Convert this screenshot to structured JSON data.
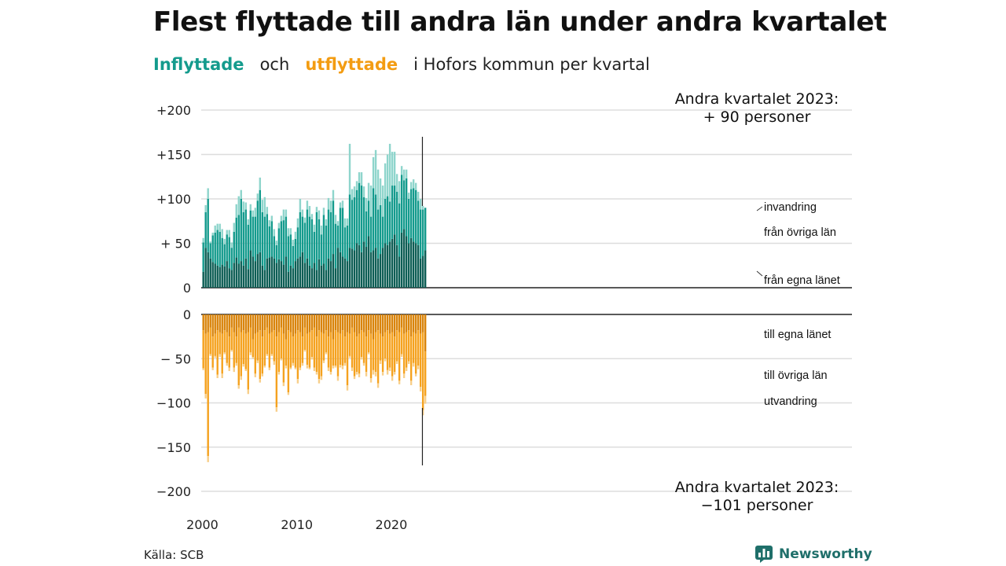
{
  "title": "Flest flyttade till andra län under andra kvartalet",
  "subtitle": {
    "in_word": "Inflyttade",
    "and_word": "och",
    "out_word": "utflyttade",
    "rest": "i Hofors kommun per kvartal"
  },
  "source": "Källa: SCB",
  "logo": {
    "text": "Newsworthy",
    "icon": "newsworthy-bar-chart-icon"
  },
  "colors": {
    "in_own": "#0e5e55",
    "in_other": "#149b8d",
    "in_imm": "#8fd5cc",
    "out_own": "#d9840b",
    "out_other": "#f5a21f",
    "out_emi": "#f8cf8a",
    "grid": "#dddddd",
    "axis": "#222222"
  },
  "chart_data": {
    "type": "bar",
    "stacked": true,
    "x_start": {
      "year": 2000,
      "quarter": 1
    },
    "x_ticks": [
      "2000",
      "2010",
      "2020"
    ],
    "y_ticks_top": [
      {
        "value": 200,
        "label": "+200"
      },
      {
        "value": 150,
        "label": "+150"
      },
      {
        "value": 100,
        "label": "+100"
      },
      {
        "value": 50,
        "label": "+ 50"
      },
      {
        "value": 0,
        "label": "0"
      }
    ],
    "y_ticks_bottom": [
      {
        "value": 0,
        "label": "0"
      },
      {
        "value": -50,
        "label": "− 50"
      },
      {
        "value": -100,
        "label": "−100"
      },
      {
        "value": -150,
        "label": "−150"
      },
      {
        "value": -200,
        "label": "−200"
      }
    ],
    "ylim_top": [
      0,
      200
    ],
    "ylim_bottom": [
      -200,
      0
    ],
    "series_labels": {
      "in_imm": "invandring",
      "in_other": "från övriga län",
      "in_own": "från egna länet",
      "out_own": "till egna länet",
      "out_other": "till övriga län",
      "out_emi": "utvandring"
    },
    "annotation_top": {
      "line1": "Andra kvartalet 2023:",
      "line2": "+ 90 personer"
    },
    "annotation_bottom": {
      "line1": "Andra kvartalet 2023:",
      "line2": "−101 personer"
    },
    "inflows": {
      "from_own_county": [
        18,
        45,
        40,
        33,
        29,
        27,
        25,
        23,
        26,
        24,
        30,
        22,
        20,
        28,
        34,
        27,
        30,
        25,
        33,
        21,
        42,
        35,
        30,
        38,
        40,
        25,
        20,
        33,
        34,
        35,
        33,
        28,
        32,
        30,
        26,
        35,
        18,
        25,
        22,
        30,
        33,
        35,
        40,
        28,
        33,
        25,
        22,
        28,
        20,
        32,
        25,
        27,
        20,
        33,
        30,
        38,
        22,
        45,
        40,
        35,
        33,
        30,
        45,
        44,
        42,
        50,
        48,
        40,
        52,
        46,
        58,
        40,
        42,
        45,
        33,
        38,
        45,
        50,
        48,
        52,
        55,
        60,
        48,
        35,
        62,
        66,
        58,
        50,
        56,
        52,
        50,
        48,
        33,
        36,
        42
      ],
      "from_other_counties": [
        33,
        40,
        60,
        17,
        30,
        35,
        40,
        40,
        30,
        25,
        30,
        35,
        25,
        35,
        45,
        55,
        70,
        60,
        55,
        50,
        45,
        45,
        50,
        60,
        70,
        60,
        60,
        50,
        35,
        40,
        25,
        20,
        35,
        45,
        50,
        45,
        40,
        35,
        25,
        25,
        35,
        50,
        40,
        45,
        55,
        55,
        55,
        35,
        65,
        45,
        35,
        55,
        50,
        55,
        55,
        60,
        50,
        25,
        50,
        55,
        35,
        40,
        60,
        55,
        60,
        60,
        70,
        75,
        50,
        40,
        40,
        40,
        70,
        60,
        55,
        55,
        35,
        50,
        55,
        45,
        60,
        55,
        60,
        60,
        65,
        55,
        65,
        50,
        55,
        60,
        60,
        50,
        55,
        52,
        48
      ],
      "immigration": [
        5,
        8,
        12,
        2,
        3,
        8,
        7,
        9,
        10,
        6,
        5,
        8,
        6,
        10,
        15,
        21,
        10,
        12,
        8,
        6,
        7,
        7,
        10,
        8,
        14,
        14,
        22,
        8,
        7,
        6,
        8,
        5,
        6,
        6,
        12,
        8,
        9,
        7,
        7,
        8,
        10,
        15,
        8,
        6,
        10,
        12,
        6,
        8,
        6,
        10,
        10,
        8,
        7,
        13,
        13,
        12,
        10,
        5,
        6,
        8,
        10,
        8,
        57,
        12,
        12,
        10,
        12,
        15,
        12,
        15,
        20,
        35,
        35,
        50,
        45,
        30,
        35,
        40,
        47,
        65,
        38,
        38,
        20,
        25,
        10,
        12,
        10,
        7,
        8,
        10,
        8,
        10,
        12,
        4,
        0
      ]
    },
    "outflows": {
      "to_own_county": [
        18,
        22,
        20,
        15,
        25,
        22,
        18,
        20,
        22,
        18,
        20,
        25,
        15,
        20,
        25,
        15,
        20,
        18,
        22,
        20,
        15,
        28,
        22,
        20,
        18,
        25,
        18,
        15,
        22,
        20,
        18,
        25,
        20,
        15,
        22,
        28,
        18,
        20,
        25,
        22,
        18,
        20,
        25,
        15,
        22,
        20,
        18,
        15,
        25,
        18,
        20,
        22,
        18,
        25,
        20,
        28,
        18,
        20,
        22,
        18,
        25,
        20,
        22,
        15,
        20,
        25,
        22,
        18,
        20,
        25,
        18,
        22,
        28,
        20,
        18,
        22,
        25,
        20,
        18,
        22,
        20,
        25,
        18,
        20,
        15,
        22,
        20,
        18,
        25,
        20,
        22,
        18,
        22,
        20,
        42
      ],
      "to_other_counties": [
        43,
        68,
        140,
        30,
        35,
        25,
        50,
        25,
        45,
        25,
        35,
        35,
        25,
        40,
        30,
        65,
        50,
        38,
        40,
        65,
        28,
        20,
        45,
        32,
        55,
        42,
        40,
        30,
        38,
        25,
        35,
        80,
        45,
        35,
        55,
        30,
        70,
        40,
        30,
        38,
        55,
        40,
        30,
        25,
        35,
        40,
        30,
        45,
        40,
        55,
        50,
        30,
        25,
        35,
        45,
        30,
        40,
        50,
        35,
        40,
        30,
        60,
        25,
        45,
        50,
        40,
        45,
        30,
        35,
        40,
        25,
        50,
        35,
        45,
        60,
        30,
        40,
        30,
        45,
        38,
        50,
        40,
        35,
        55,
        30,
        45,
        40,
        35,
        50,
        35,
        45,
        40,
        60,
        88,
        50
      ],
      "emigration": [
        2,
        5,
        7,
        2,
        3,
        2,
        4,
        3,
        5,
        2,
        3,
        4,
        2,
        5,
        3,
        4,
        4,
        3,
        2,
        5,
        3,
        2,
        4,
        3,
        4,
        3,
        2,
        2,
        3,
        2,
        4,
        5,
        3,
        2,
        4,
        3,
        3,
        2,
        3,
        2,
        5,
        3,
        3,
        2,
        4,
        2,
        3,
        4,
        3,
        5,
        4,
        3,
        2,
        4,
        3,
        3,
        2,
        5,
        3,
        4,
        3,
        6,
        2,
        4,
        3,
        3,
        4,
        3,
        3,
        5,
        2,
        5,
        5,
        5,
        5,
        4,
        4,
        3,
        5,
        4,
        5,
        3,
        3,
        4,
        3,
        5,
        4,
        3,
        5,
        4,
        3,
        4,
        5,
        6,
        9
      ]
    }
  }
}
